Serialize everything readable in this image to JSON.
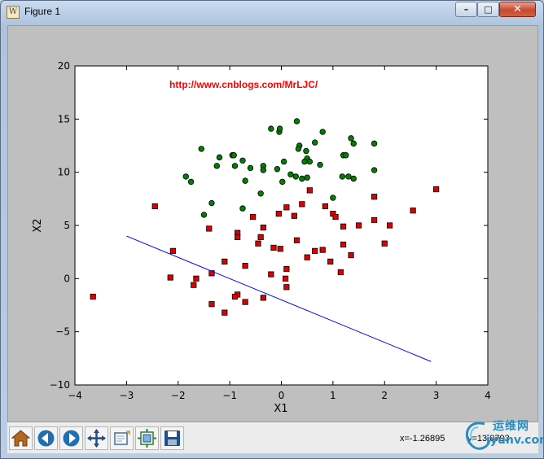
{
  "window": {
    "title": "Figure 1",
    "app_icon_glyph": "W",
    "min_glyph": "–",
    "max_glyph": "□",
    "close_glyph": "✕"
  },
  "toolbar": {
    "buttons": [
      "home-icon",
      "back-icon",
      "forward-icon",
      "pan-icon",
      "zoom-icon",
      "subplots-icon",
      "save-icon"
    ],
    "x_readout": "x=-1.26895",
    "y_readout": "y=13.0793"
  },
  "watermark": {
    "cn": "运维网",
    "en": "iyunv.com"
  },
  "chart_data": {
    "type": "scatter",
    "title": "",
    "annotation": "http://www.cnblogs.com/MrLJC/",
    "xlabel": "X1",
    "ylabel": "X2",
    "xlim": [
      -4,
      4
    ],
    "ylim": [
      -10,
      20
    ],
    "xticks": [
      "−4",
      "−3",
      "−2",
      "−1",
      "0",
      "1",
      "2",
      "3",
      "4"
    ],
    "yticks": [
      "−10",
      "−5",
      "0",
      "5",
      "10",
      "15",
      "20"
    ],
    "grid": false,
    "colors": {
      "class1": "#008000",
      "class0": "#dd0000",
      "line": "#0000ff",
      "annotation": "#ff0000"
    },
    "series": [
      {
        "marker": "circle",
        "points": [
          [
            -0.2,
            14.1
          ],
          [
            0.3,
            14.8
          ],
          [
            -0.04,
            13.8
          ],
          [
            -0.03,
            14.1
          ],
          [
            0.8,
            13.8
          ],
          [
            1.35,
            13.2
          ],
          [
            0.65,
            12.8
          ],
          [
            1.4,
            12.7
          ],
          [
            1.8,
            12.7
          ],
          [
            -1.55,
            12.2
          ],
          [
            0.35,
            12.5
          ],
          [
            0.48,
            12.0
          ],
          [
            0.33,
            12.2
          ],
          [
            1.2,
            11.6
          ],
          [
            1.25,
            11.6
          ],
          [
            -0.95,
            11.6
          ],
          [
            -0.92,
            11.6
          ],
          [
            -1.2,
            11.4
          ],
          [
            0.5,
            11.3
          ],
          [
            -0.75,
            11.1
          ],
          [
            0.05,
            11.0
          ],
          [
            0.45,
            11.0
          ],
          [
            0.55,
            11.0
          ],
          [
            0.75,
            10.7
          ],
          [
            -0.9,
            10.6
          ],
          [
            -0.35,
            10.6
          ],
          [
            -0.6,
            10.4
          ],
          [
            -1.25,
            10.6
          ],
          [
            -0.08,
            10.3
          ],
          [
            1.8,
            10.2
          ],
          [
            -0.35,
            10.2
          ],
          [
            0.18,
            9.8
          ],
          [
            0.28,
            9.6
          ],
          [
            1.3,
            9.6
          ],
          [
            0.5,
            9.5
          ],
          [
            -1.85,
            9.6
          ],
          [
            -1.75,
            9.1
          ],
          [
            -0.7,
            9.2
          ],
          [
            0.02,
            9.1
          ],
          [
            1.4,
            9.4
          ],
          [
            -0.4,
            8.0
          ],
          [
            1.0,
            7.6
          ],
          [
            -1.35,
            7.1
          ],
          [
            -0.75,
            6.6
          ],
          [
            -1.5,
            6.0
          ],
          [
            1.18,
            9.6
          ],
          [
            0.4,
            9.4
          ]
        ]
      },
      {
        "marker": "square",
        "points": [
          [
            3.0,
            8.4
          ],
          [
            1.8,
            7.7
          ],
          [
            -2.45,
            6.8
          ],
          [
            0.1,
            6.7
          ],
          [
            0.55,
            8.3
          ],
          [
            0.4,
            7.0
          ],
          [
            0.85,
            6.8
          ],
          [
            2.55,
            6.4
          ],
          [
            -0.05,
            6.1
          ],
          [
            0.25,
            5.9
          ],
          [
            1.0,
            6.1
          ],
          [
            -0.55,
            5.8
          ],
          [
            1.05,
            5.8
          ],
          [
            1.8,
            5.5
          ],
          [
            2.1,
            5.0
          ],
          [
            1.5,
            5.0
          ],
          [
            1.2,
            4.9
          ],
          [
            -1.4,
            4.7
          ],
          [
            -0.35,
            4.8
          ],
          [
            -0.85,
            4.3
          ],
          [
            -0.85,
            3.9
          ],
          [
            -0.4,
            3.9
          ],
          [
            0.3,
            3.6
          ],
          [
            -0.45,
            3.3
          ],
          [
            2.0,
            3.3
          ],
          [
            1.2,
            3.2
          ],
          [
            -0.15,
            2.9
          ],
          [
            -0.02,
            2.8
          ],
          [
            0.8,
            2.7
          ],
          [
            0.65,
            2.6
          ],
          [
            -2.1,
            2.6
          ],
          [
            1.35,
            2.2
          ],
          [
            0.5,
            2.0
          ],
          [
            -1.1,
            1.6
          ],
          [
            0.95,
            1.6
          ],
          [
            -0.7,
            1.2
          ],
          [
            0.1,
            0.9
          ],
          [
            1.15,
            0.6
          ],
          [
            -1.35,
            0.5
          ],
          [
            -0.2,
            0.4
          ],
          [
            -2.15,
            0.1
          ],
          [
            -1.65,
            0.0
          ],
          [
            0.08,
            0.0
          ],
          [
            -1.7,
            -0.6
          ],
          [
            0.1,
            -0.8
          ],
          [
            -0.85,
            -1.5
          ],
          [
            -0.35,
            -1.8
          ],
          [
            -0.9,
            -1.7
          ],
          [
            -3.65,
            -1.7
          ],
          [
            -1.35,
            -2.4
          ],
          [
            -0.7,
            -2.2
          ],
          [
            -1.1,
            -3.2
          ]
        ]
      },
      {
        "marker": "line",
        "points": [
          [
            -3.0,
            4.0
          ],
          [
            2.9,
            -7.8
          ]
        ]
      }
    ]
  }
}
